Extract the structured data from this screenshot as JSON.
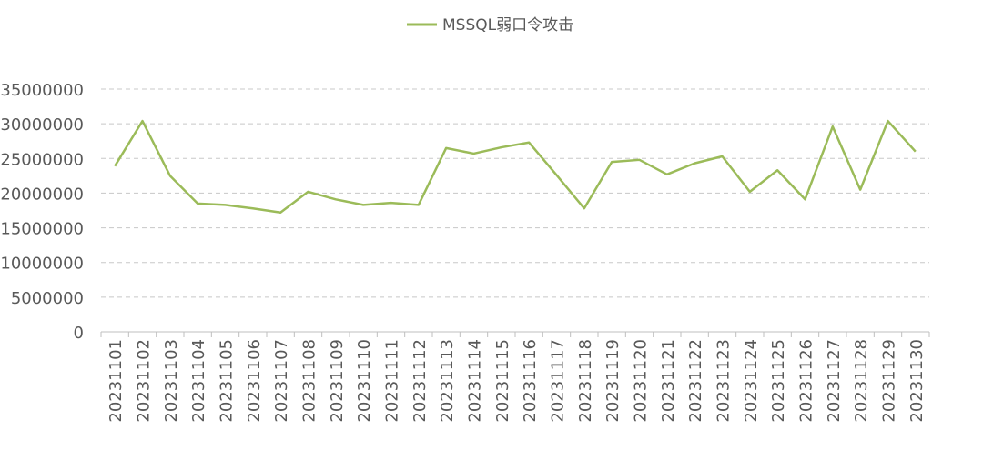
{
  "chart_data": {
    "type": "line",
    "title": "",
    "xlabel": "",
    "ylabel": "",
    "x": [
      "20231101",
      "20231102",
      "20231103",
      "20231104",
      "20231105",
      "20231106",
      "20231107",
      "20231108",
      "20231109",
      "20231110",
      "20231111",
      "20231112",
      "20231113",
      "20231114",
      "20231115",
      "20231116",
      "20231117",
      "20231118",
      "20231119",
      "20231120",
      "20231121",
      "20231122",
      "20231123",
      "20231124",
      "20231125",
      "20231126",
      "20231127",
      "20231128",
      "20231129",
      "20231130"
    ],
    "series": [
      {
        "name": "MSSQL弱口令攻击",
        "color": "#9bbb59",
        "values": [
          23900000,
          30400000,
          22500000,
          18500000,
          18300000,
          17800000,
          17200000,
          20200000,
          19100000,
          18300000,
          18600000,
          18300000,
          26500000,
          25700000,
          26600000,
          27300000,
          22600000,
          17800000,
          24500000,
          24800000,
          22700000,
          24300000,
          25300000,
          20200000,
          23300000,
          19100000,
          29600000,
          20500000,
          30400000,
          26000000
        ]
      }
    ],
    "yticks": [
      "0",
      "5000000",
      "10000000",
      "15000000",
      "20000000",
      "25000000",
      "30000000",
      "35000000"
    ],
    "ylim": [
      0,
      35000000
    ],
    "grid": "horizontal dashed",
    "legend": "top-center",
    "colors": {
      "line": "#9bbb59",
      "grid": "#c8c8c8",
      "axis": "#bfbfbf",
      "text": "#595959"
    }
  }
}
